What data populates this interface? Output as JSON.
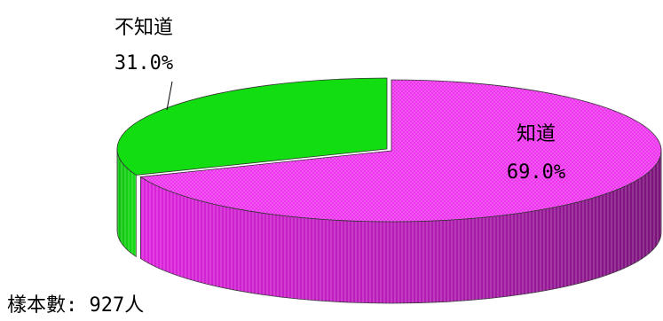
{
  "chart_data": {
    "type": "pie",
    "style": "3d-exploded-ellipse",
    "slices": [
      {
        "label": "知道",
        "percent_label": "69.0%",
        "value": 69.0,
        "color": "#ee22ee"
      },
      {
        "label": "不知道",
        "percent_label": "31.0%",
        "value": 31.0,
        "color": "#11dd11"
      }
    ],
    "legend": "none"
  },
  "footnote": {
    "sample_label": "樣本數:",
    "sample_value": "927人"
  }
}
